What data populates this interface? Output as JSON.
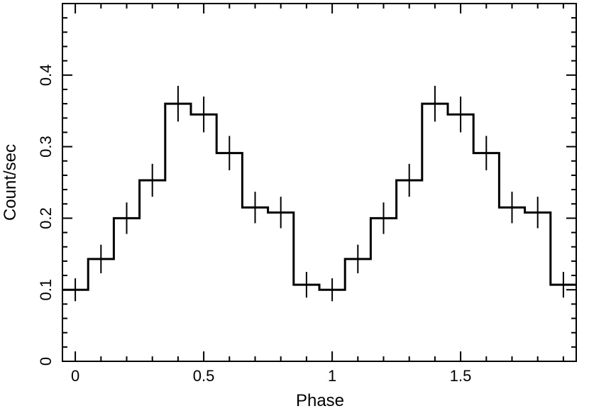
{
  "chart_data": {
    "type": "line",
    "style": "step-histogram-with-error-bars",
    "title": "",
    "xlabel": "Phase",
    "ylabel": "Count/sec",
    "xlim": [
      -0.05,
      1.95
    ],
    "ylim": [
      0,
      0.5
    ],
    "x_ticks": [
      0,
      0.5,
      1,
      1.5
    ],
    "x_tick_labels": [
      "0",
      "0.5",
      "1",
      "1.5"
    ],
    "y_ticks": [
      0,
      0.1,
      0.2,
      0.3,
      0.4
    ],
    "y_tick_labels": [
      "0",
      "0.1",
      "0.2",
      "0.3",
      "0.4"
    ],
    "bin_width": 0.1,
    "grid": false,
    "legend": "none",
    "series": [
      {
        "x": [
          0.0,
          0.1,
          0.2,
          0.3,
          0.4,
          0.5,
          0.6,
          0.7,
          0.8,
          0.9,
          1.0,
          1.1,
          1.2,
          1.3,
          1.4,
          1.5,
          1.6,
          1.7,
          1.8,
          1.9
        ],
        "y": [
          0.1,
          0.143,
          0.2,
          0.253,
          0.36,
          0.345,
          0.291,
          0.215,
          0.208,
          0.107,
          0.1,
          0.143,
          0.2,
          0.253,
          0.36,
          0.345,
          0.291,
          0.215,
          0.208,
          0.107
        ],
        "yerr": [
          0.016,
          0.02,
          0.022,
          0.023,
          0.025,
          0.025,
          0.024,
          0.022,
          0.022,
          0.018,
          0.016,
          0.02,
          0.022,
          0.023,
          0.025,
          0.025,
          0.024,
          0.022,
          0.022,
          0.018
        ]
      }
    ],
    "colors": {
      "line": "#000000",
      "background": "#ffffff"
    }
  }
}
